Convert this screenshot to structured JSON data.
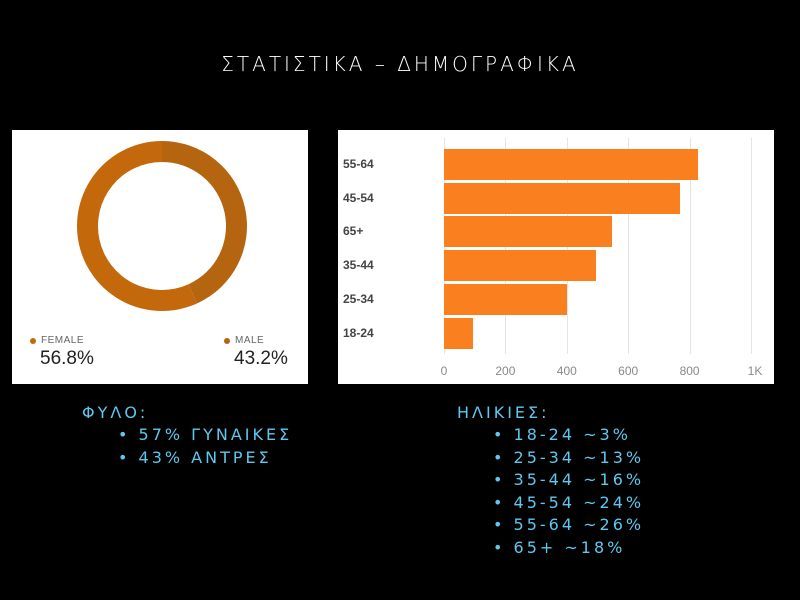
{
  "title": "ΣΤΑΤΙΣΤΙΚΑ – ΔΗΜΟΓΡΑΦΙΚΑ",
  "colors": {
    "female": "#c4680c",
    "male": "#b5650f",
    "bar": "#fa7f1e",
    "notes": "#5ec8f0"
  },
  "gender_card": {
    "female_label": "FEMALE",
    "female_value": "56.8%",
    "male_label": "MALE",
    "male_value": "43.2%"
  },
  "age_card": {
    "categories": [
      "55-64",
      "45-54",
      "65+",
      "35-44",
      "25-34",
      "18-24"
    ],
    "ticks": [
      "0",
      "200",
      "400",
      "600",
      "800",
      "1K"
    ]
  },
  "notes": {
    "gender_heading": "ΦΥΛΟ:",
    "gender_items": [
      "57% ΓΥΝΑΙΚΕΣ",
      "43% ΑΝΤΡΕΣ"
    ],
    "age_heading": "ΗΛΙΚΙΕΣ:",
    "age_items": [
      "18-24 ~3%",
      "25-34 ~13%",
      "35-44 ~16%",
      "45-54 ~24%",
      "55-64 ~26%",
      "65+ ~18%"
    ]
  },
  "chart_data": [
    {
      "type": "pie",
      "title": "",
      "categories": [
        "FEMALE",
        "MALE"
      ],
      "values": [
        56.8,
        43.2
      ],
      "legend_position": "bottom",
      "donut": true
    },
    {
      "type": "bar",
      "orientation": "horizontal",
      "title": "",
      "categories": [
        "55-64",
        "45-54",
        "65+",
        "35-44",
        "25-34",
        "18-24"
      ],
      "values": [
        828,
        770,
        548,
        495,
        400,
        95
      ],
      "xlabel": "",
      "ylabel": "",
      "xlim": [
        0,
        1000
      ],
      "xticks": [
        "0",
        "200",
        "400",
        "600",
        "800",
        "1K"
      ],
      "grid": true
    }
  ]
}
